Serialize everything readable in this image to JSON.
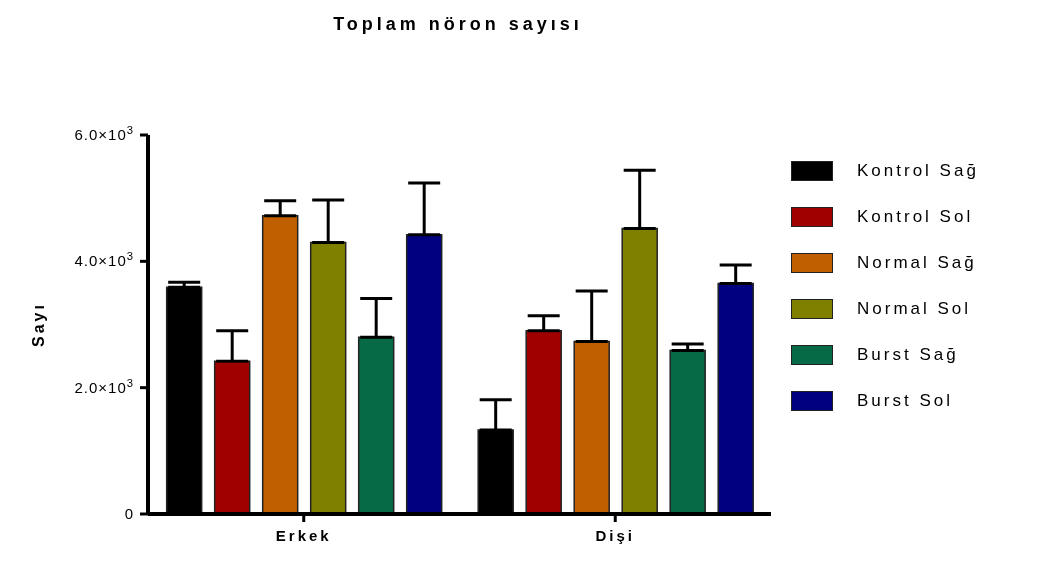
{
  "chart_data": {
    "type": "bar",
    "title": "Toplam nöron sayısı",
    "ylabel": "Sayı",
    "categories": [
      "Erkek",
      "Dişi"
    ],
    "series": [
      {
        "name": "Kontrol Sağ",
        "color": "#000000",
        "values": [
          3590,
          1330
        ],
        "errors": [
          [
            3590,
            3670
          ],
          [
            1330,
            1810
          ]
        ]
      },
      {
        "name": "Kontrol Sol",
        "color": "#a00000",
        "values": [
          2420,
          2900
        ],
        "errors": [
          [
            2420,
            2900
          ],
          [
            2900,
            3140
          ]
        ]
      },
      {
        "name": "Normal Sağ",
        "color": "#c05f00",
        "values": [
          4720,
          2730
        ],
        "errors": [
          [
            4720,
            4960
          ],
          [
            2730,
            3530
          ]
        ]
      },
      {
        "name": "Normal Sol",
        "color": "#808000",
        "values": [
          4300,
          4520
        ],
        "errors": [
          [
            4300,
            4970
          ],
          [
            4520,
            5440
          ]
        ]
      },
      {
        "name": "Burst Sağ",
        "color": "#066a46",
        "values": [
          2800,
          2590
        ],
        "errors": [
          [
            2800,
            3410
          ],
          [
            2590,
            2690
          ]
        ]
      },
      {
        "name": "Burst Sol",
        "color": "#000080",
        "values": [
          4420,
          3650
        ],
        "errors": [
          [
            4420,
            5240
          ],
          [
            3650,
            3940
          ]
        ]
      }
    ],
    "ylim": [
      0,
      6000
    ],
    "yticks": [
      0,
      {
        "value": 2000,
        "label": "2.0×10$^{3}$"
      },
      {
        "value": 4000,
        "label": "4.0×10$^{3}$"
      },
      {
        "value": 6000,
        "label": "6.0×10$^{3}$"
      }
    ],
    "grid": false,
    "legend": "right"
  }
}
